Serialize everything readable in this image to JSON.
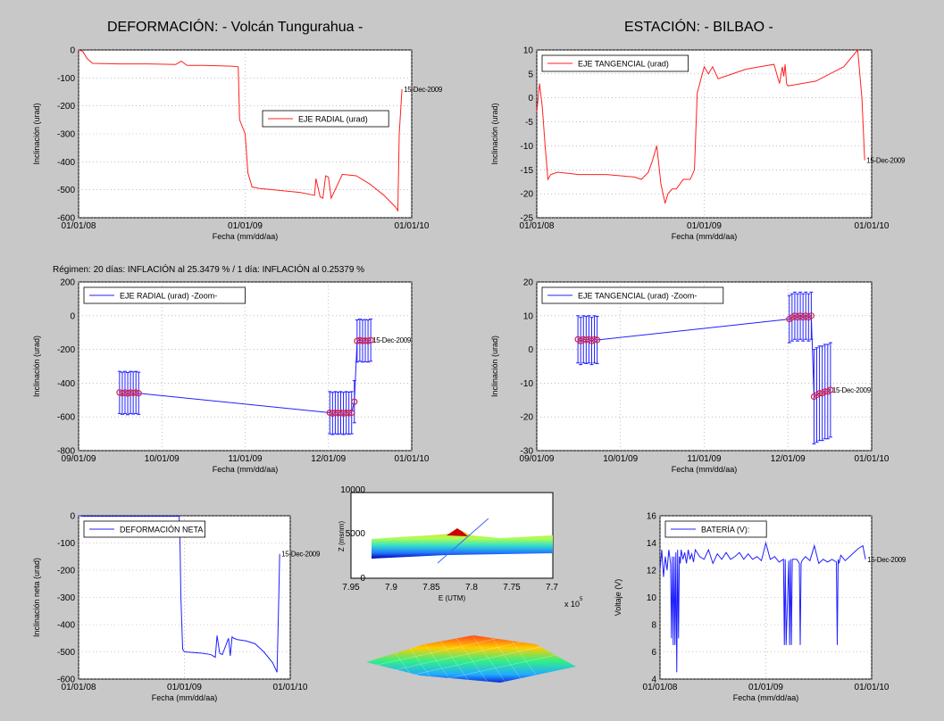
{
  "header": {
    "left_title": "DEFORMACIÓN: - Volcán Tungurahua -",
    "right_title": "ESTACIÓN: - BILBAO -"
  },
  "regime_note": "Régimen: 20 días: INFLACIÓN al 25.3479 % / 1 día: INFLACIÓN al 0.25379 %",
  "colors": {
    "red": "#ff2020",
    "blue": "#2020ff",
    "marker": "#cc2255",
    "panel": "#ffffff",
    "background": "#c8c8c8"
  },
  "chart_data": [
    {
      "id": "radial",
      "type": "line",
      "color": "#ff2020",
      "xlabel": "Fecha (mm/dd/aa)",
      "ylabel": "Inclinación (urad)",
      "xticks": [
        "01/01/08",
        "01/01/09",
        "01/01/10"
      ],
      "xlim": [
        0,
        24
      ],
      "ylim": [
        -600,
        0
      ],
      "yticks": [
        0,
        -100,
        -200,
        -300,
        -400,
        -500,
        -600
      ],
      "legend": "EJE RADIAL (urad)",
      "legend_loc": "center-right",
      "annotation": "15-Dec-2009",
      "series": [
        {
          "name": "EJE RADIAL (urad)",
          "x": [
            0.0,
            0.3,
            0.6,
            1.0,
            3.0,
            5.0,
            7.0,
            7.4,
            7.8,
            9.0,
            11.0,
            11.5,
            11.6,
            12.0,
            12.2,
            12.5,
            13.0,
            14.0,
            16.0,
            17.0,
            17.1,
            17.4,
            17.6,
            17.8,
            18.0,
            18.2,
            19.0,
            20.0,
            21.0,
            22.0,
            22.8,
            23.0,
            23.1,
            23.3
          ],
          "y": [
            0,
            -5,
            -30,
            -48,
            -50,
            -50,
            -52,
            -40,
            -55,
            -55,
            -58,
            -60,
            -250,
            -300,
            -440,
            -490,
            -495,
            -500,
            -510,
            -520,
            -460,
            -525,
            -530,
            -450,
            -455,
            -530,
            -445,
            -450,
            -480,
            -520,
            -560,
            -575,
            -300,
            -140
          ]
        }
      ]
    },
    {
      "id": "tangential",
      "type": "line",
      "color": "#ff2020",
      "xlabel": "Fecha (mm/dd/aa)",
      "ylabel": "Inclinación (urad)",
      "xticks": [
        "01/01/08",
        "01/01/09",
        "01/01/10"
      ],
      "xlim": [
        0,
        24
      ],
      "ylim": [
        -25,
        10
      ],
      "yticks": [
        10,
        5,
        0,
        -5,
        -10,
        -15,
        -20,
        -25
      ],
      "legend": "EJE TANGENCIAL (urad)",
      "legend_loc": "top-left",
      "annotation": "15-Dec-2009",
      "series": [
        {
          "name": "EJE TANGENCIAL (urad)",
          "x": [
            0.0,
            0.2,
            0.4,
            0.6,
            0.8,
            1.0,
            1.5,
            3.0,
            5.0,
            7.0,
            7.5,
            8.0,
            8.3,
            8.6,
            8.9,
            9.2,
            9.4,
            9.7,
            10.0,
            10.5,
            11.0,
            11.3,
            11.5,
            12.0,
            12.3,
            12.6,
            13.0,
            14.0,
            15.0,
            16.0,
            17.0,
            17.2,
            17.4,
            17.6,
            17.7,
            17.8,
            17.9,
            18.0,
            19.0,
            20.0,
            21.0,
            22.0,
            23.0,
            23.3,
            23.5
          ],
          "y": [
            -3,
            3,
            -2,
            -10,
            -17,
            -16,
            -15.5,
            -16,
            -16,
            -16.5,
            -17,
            -15.5,
            -13,
            -10,
            -18,
            -22,
            -20,
            -19,
            -19,
            -17,
            -17,
            -15,
            1,
            6.5,
            5,
            6.5,
            4,
            5,
            6,
            6.5,
            7,
            5,
            3,
            6.5,
            4.5,
            7,
            3,
            2.5,
            3,
            3.5,
            5,
            6.5,
            10,
            0,
            -13
          ]
        }
      ]
    },
    {
      "id": "radial-zoom",
      "type": "line",
      "color": "#2020ff",
      "xlabel": "Fecha (mm/dd/aa)",
      "ylabel": "Inclinación (urad)",
      "xticks": [
        "09/01/09",
        "10/01/09",
        "11/01/09",
        "12/01/09",
        "01/01/10"
      ],
      "xlim": [
        0,
        122
      ],
      "ylim": [
        -800,
        200
      ],
      "yticks": [
        200,
        0,
        -200,
        -400,
        -600,
        -800
      ],
      "legend": "EJE RADIAL (urad) -Zoom-",
      "legend_loc": "top-left",
      "annotation": "15-Dec-2009",
      "series": [
        {
          "name": "EJE RADIAL (urad) -Zoom-",
          "x": [
            15,
            16,
            17,
            18,
            19,
            20,
            21,
            22,
            92,
            93,
            94,
            95,
            96,
            97,
            98,
            99,
            100,
            101,
            102,
            103,
            104,
            105,
            106,
            107
          ],
          "y": [
            -455,
            -460,
            -455,
            -462,
            -455,
            -458,
            -455,
            -460,
            -575,
            -580,
            -575,
            -578,
            -575,
            -580,
            -575,
            -578,
            -575,
            -510,
            -150,
            -145,
            -150,
            -148,
            -150,
            -145
          ],
          "err": 125
        }
      ]
    },
    {
      "id": "tangential-zoom",
      "type": "line",
      "color": "#2020ff",
      "xlabel": "Fecha (mm/dd/aa)",
      "ylabel": "Inclinación (urad)",
      "xticks": [
        "09/01/09",
        "10/01/09",
        "11/01/09",
        "12/01/09",
        "01/01/10"
      ],
      "xlim": [
        0,
        122
      ],
      "ylim": [
        -30,
        20
      ],
      "yticks": [
        20,
        10,
        0,
        -10,
        -20,
        -30
      ],
      "legend": "EJE TANGENCIAL (urad) -Zoom-",
      "legend_loc": "top-left",
      "annotation": "15-Dec-2009",
      "series": [
        {
          "name": "EJE TANGENCIAL (urad) -Zoom-",
          "x": [
            15,
            16,
            17,
            18,
            19,
            20,
            21,
            22,
            92,
            93,
            94,
            95,
            96,
            97,
            98,
            99,
            100,
            101,
            102,
            103,
            104,
            105,
            106,
            107
          ],
          "y": [
            3,
            2.5,
            3,
            2.8,
            3,
            2.5,
            3,
            2.8,
            9,
            9.5,
            10,
            9.5,
            10,
            9.5,
            10,
            9.5,
            10,
            -14,
            -13.5,
            -13,
            -13,
            -12.5,
            -12.5,
            -12
          ],
          "err": 7,
          "err_tail": 14
        }
      ]
    },
    {
      "id": "net",
      "type": "line",
      "color": "#2020ff",
      "xlabel": "Fecha (mm/dd/aa)",
      "ylabel": "Inclinación neta (urad)",
      "xticks": [
        "01/01/08",
        "01/01/09",
        "01/01/10"
      ],
      "xlim": [
        0,
        24
      ],
      "ylim": [
        -600,
        0
      ],
      "yticks": [
        0,
        -100,
        -200,
        -300,
        -400,
        -500,
        -600
      ],
      "legend": "DEFORMACIÓN NETA",
      "legend_loc": "top-left",
      "annotation": "15-Dec-2009",
      "series": [
        {
          "name": "DEFORMACIÓN NETA",
          "x": [
            0.0,
            0.2,
            0.4,
            11.4,
            11.5,
            11.6,
            11.8,
            12.0,
            14.0,
            15.0,
            15.5,
            15.7,
            16.0,
            16.3,
            17.0,
            17.2,
            17.4,
            17.6,
            18.0,
            19.0,
            20.0,
            21.0,
            22.0,
            22.5,
            22.7,
            22.8
          ],
          "y": [
            0,
            0,
            -2,
            -2,
            -100,
            -300,
            -490,
            -500,
            -505,
            -510,
            -520,
            -440,
            -505,
            -510,
            -450,
            -515,
            -445,
            -450,
            -455,
            -460,
            -470,
            -500,
            -540,
            -575,
            -300,
            -140
          ]
        }
      ]
    },
    {
      "id": "battery",
      "type": "line",
      "color": "#2020ff",
      "xlabel": "Fecha (mm/dd/aa)",
      "ylabel": "Voltaje (V)",
      "xticks": [
        "01/01/08",
        "01/01/09",
        "01/01/10"
      ],
      "xlim": [
        0,
        24
      ],
      "ylim": [
        4,
        16
      ],
      "yticks": [
        16,
        14,
        12,
        10,
        8,
        6,
        4
      ],
      "legend": "BATERÍA (V):",
      "legend_loc": "top-left",
      "annotation": "15-Dec-2009",
      "series": [
        {
          "name": "BATERÍA (V):",
          "x": [
            0.0,
            0.2,
            0.4,
            0.6,
            0.8,
            1.0,
            1.2,
            1.3,
            1.4,
            1.5,
            1.6,
            1.7,
            1.8,
            1.9,
            2.0,
            2.1,
            2.2,
            2.3,
            2.4,
            2.6,
            2.8,
            3.0,
            3.2,
            3.4,
            3.6,
            3.8,
            4.0,
            4.5,
            5.0,
            5.5,
            6.0,
            6.5,
            7.0,
            7.5,
            8.0,
            8.5,
            9.0,
            9.5,
            10.0,
            10.5,
            11.0,
            11.5,
            12.0,
            12.5,
            13.0,
            13.5,
            14.0,
            14.1,
            14.2,
            14.3,
            14.6,
            14.7,
            14.8,
            14.9,
            15.0,
            15.5,
            15.8,
            15.9,
            16.0,
            16.1,
            16.5,
            17.0,
            17.5,
            18.0,
            18.5,
            19.0,
            19.5,
            20.0,
            20.1,
            20.2,
            20.3,
            20.5,
            21.0,
            21.5,
            22.0,
            22.5,
            23.0,
            23.3
          ],
          "y": [
            12,
            13.5,
            11.5,
            13,
            12,
            13.5,
            12.5,
            7,
            13,
            6.5,
            13,
            6.5,
            13.3,
            4.5,
            13.5,
            7,
            13,
            12.5,
            13.5,
            12.8,
            13.3,
            12.5,
            13.5,
            12.8,
            13.2,
            12.6,
            13.5,
            13,
            12.8,
            13.5,
            12.5,
            13.2,
            12.8,
            13.3,
            12.8,
            13,
            13.3,
            12.8,
            13.2,
            12.8,
            13,
            12.7,
            14,
            12.8,
            13,
            12.6,
            12.8,
            6.5,
            12.8,
            6.5,
            12.7,
            6.5,
            12.8,
            6.5,
            12.8,
            12.8,
            12.5,
            6.5,
            12.5,
            12.7,
            13,
            12.7,
            13.8,
            12.5,
            12.8,
            12.6,
            12.8,
            12.6,
            6.5,
            12.8,
            12.5,
            13.1,
            12.7,
            13,
            13.3,
            13.6,
            13.8,
            12.8
          ]
        }
      ]
    }
  ],
  "model": {
    "ylabel": "Z (msnm)",
    "xlabel": "E (UTM)",
    "x_exponent": "x 10",
    "x_exponent_power": "5",
    "xticks": [
      "7.95",
      "7.9",
      "7.85",
      "7.8",
      "7.75",
      "7.7"
    ],
    "yticks": [
      "10000",
      "5000",
      "0"
    ]
  }
}
